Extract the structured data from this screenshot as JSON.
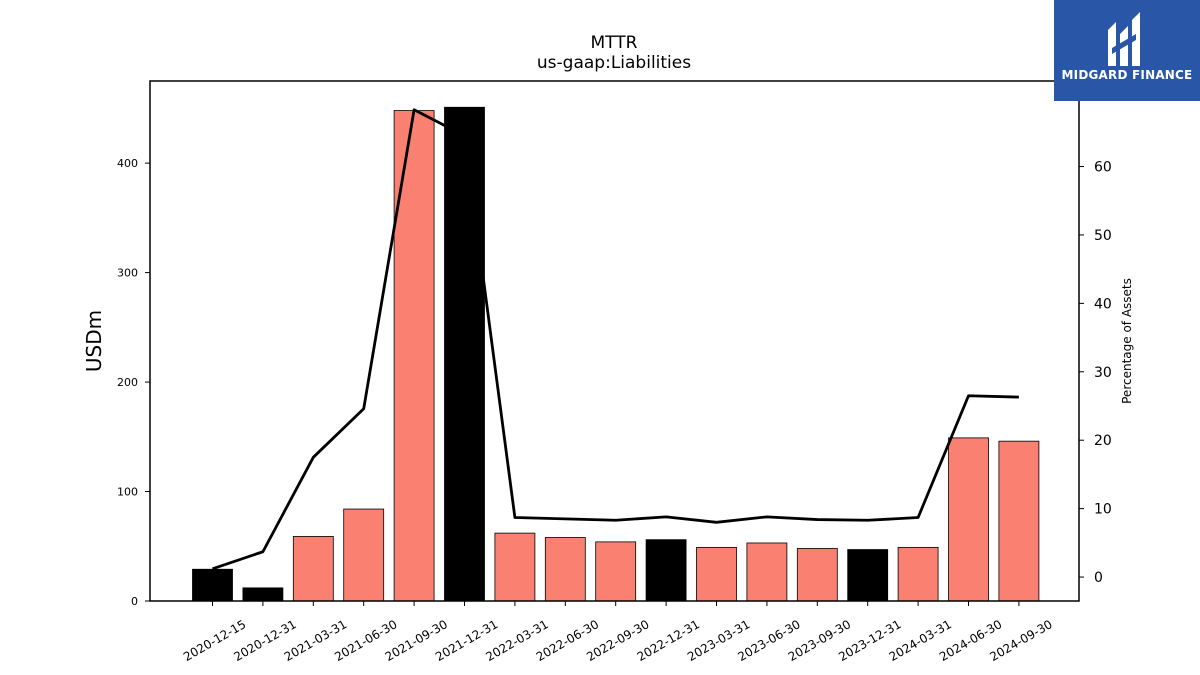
{
  "chart_data": {
    "type": "bar",
    "title": "MTTR",
    "subtitle": "us-gaap:Liabilities",
    "ylabel": "USDm",
    "y2label": "Percentage of Assets",
    "ylim": [
      0,
      475
    ],
    "y2lim": [
      -3.5,
      72.5
    ],
    "yticks": [
      0,
      100,
      200,
      300,
      400
    ],
    "y2ticks": [
      0,
      10,
      20,
      30,
      40,
      50,
      60
    ],
    "categories": [
      "2020-12-15",
      "2020-12-31",
      "2021-03-31",
      "2021-06-30",
      "2021-09-30",
      "2021-12-31",
      "2022-03-31",
      "2022-06-30",
      "2022-09-30",
      "2022-12-31",
      "2023-03-31",
      "2023-06-30",
      "2023-09-30",
      "2023-12-31",
      "2024-03-31",
      "2024-06-30",
      "2024-09-30"
    ],
    "series": [
      {
        "type": "bar",
        "values": [
          29,
          12,
          59,
          84,
          448,
          451,
          62,
          58,
          54,
          56,
          49,
          53,
          48,
          47,
          49,
          149,
          146
        ],
        "highlight": [
          true,
          true,
          false,
          false,
          false,
          true,
          false,
          false,
          false,
          true,
          false,
          false,
          false,
          true,
          false,
          false,
          false
        ]
      },
      {
        "type": "line",
        "axis": "right",
        "values": [
          1.2,
          3.7,
          17.5,
          24.6,
          68.3,
          64.5,
          8.7,
          8.5,
          8.3,
          8.8,
          8.0,
          8.8,
          8.4,
          8.3,
          8.7,
          26.5,
          26.3
        ]
      }
    ],
    "colors": {
      "bar": "#fa8072",
      "highlight": "#000000",
      "line": "#000000"
    }
  },
  "logo": {
    "text": "MIDGARD FINANCE",
    "icon": "midgard-logo-icon"
  }
}
